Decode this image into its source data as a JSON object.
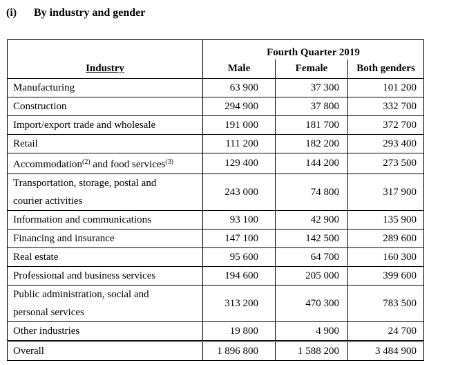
{
  "section": {
    "number": "(i)",
    "title": "By industry and gender"
  },
  "table": {
    "period": "Fourth Quarter 2019",
    "headers": {
      "industry": "Industry",
      "male": "Male",
      "female": "Female",
      "both": "Both genders"
    },
    "rows": [
      {
        "industry": "Manufacturing",
        "male": "63 900",
        "female": "37 300",
        "both": "101 200"
      },
      {
        "industry": "Construction",
        "male": "294 900",
        "female": "37 800",
        "both": "332 700"
      },
      {
        "industry": "Import/export trade and wholesale",
        "male": "191 000",
        "female": "181 700",
        "both": "372 700"
      },
      {
        "industry": "Retail",
        "male": "111 200",
        "female": "182 200",
        "both": "293 400"
      },
      {
        "industry_a": "Accommodation",
        "note_a": "(2)",
        "industry_b": " and food services",
        "note_b": "(3)",
        "male": "129 400",
        "female": "144 200",
        "both": "273 500"
      },
      {
        "industry_line1": "Transportation, storage, postal and",
        "industry_line2": "courier activities",
        "male": "243 000",
        "female": "74 800",
        "both": "317 900"
      },
      {
        "industry": "Information and communications",
        "male": "93 100",
        "female": "42 900",
        "both": "135 900"
      },
      {
        "industry": "Financing and insurance",
        "male": "147 100",
        "female": "142 500",
        "both": "289 600"
      },
      {
        "industry": "Real estate",
        "male": "95 600",
        "female": "64 700",
        "both": "160 300"
      },
      {
        "industry": "Professional and business services",
        "male": "194 600",
        "female": "205 000",
        "both": "399 600"
      },
      {
        "industry_line1": "Public administration, social and",
        "industry_line2": "personal services",
        "male": "313 200",
        "female": "470 300",
        "both": "783 500"
      },
      {
        "industry": "Other industries",
        "male": "19 800",
        "female": "4 900",
        "both": "24 700"
      }
    ],
    "total": {
      "industry": "Overall",
      "male": "1 896 800",
      "female": "1 588 200",
      "both": "3 484 900"
    }
  }
}
